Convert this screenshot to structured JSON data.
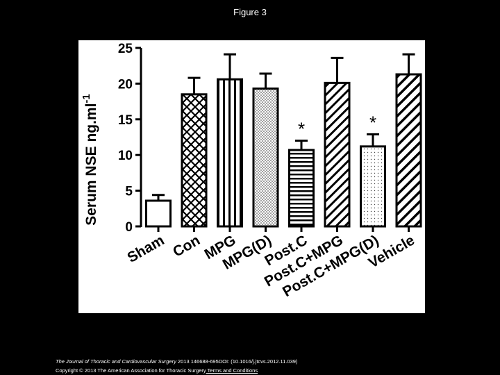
{
  "slide": {
    "title": "Figure 3"
  },
  "footer": {
    "journal": "The Journal of Thoracic and Cardiovascular Surgery",
    "citation": " 2013 146688-695DOI: (10.1016/j.jtcvs.2012.11.039)",
    "copyright": "Copyright © 2013 The American Association for Thoracic Surgery",
    "terms_link": " Terms and Conditions"
  },
  "chart_data": {
    "type": "bar",
    "title": "",
    "xlabel": "",
    "ylabel": "Serum NSE ng.ml",
    "ylabel_superscript": "-1",
    "ylim": [
      0,
      25
    ],
    "yticks": [
      "0",
      "5",
      "10",
      "15",
      "20",
      "25"
    ],
    "grid": false,
    "categories": [
      "Sham",
      "Con",
      "MPG",
      "MPG(D)",
      "Post.C",
      "Post.C+MPG",
      "Post.C+MPG(D)",
      "Vehicle"
    ],
    "values": [
      3.6,
      18.5,
      20.6,
      19.3,
      10.7,
      20.1,
      11.2,
      21.3
    ],
    "error": [
      0.8,
      2.3,
      3.5,
      2.1,
      1.3,
      3.5,
      1.7,
      2.8
    ],
    "fill_patterns": [
      "white",
      "crosshatch",
      "vertical-lines",
      "dotted-dense",
      "horizontal-lines",
      "diagonal-lines",
      "dotted-sparse",
      "diagonal-lines-thick"
    ],
    "annotations": [
      {
        "category": "Post.C",
        "text": "*"
      },
      {
        "category": "Post.C+MPG(D)",
        "text": "*"
      }
    ]
  }
}
